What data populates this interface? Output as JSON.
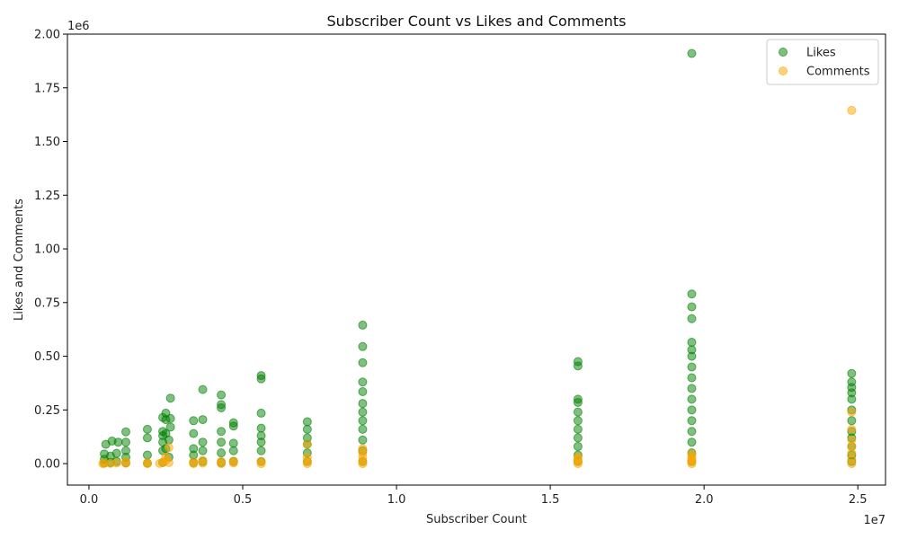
{
  "chart_data": {
    "type": "scatter",
    "title": "Subscriber Count vs Likes and Comments",
    "xlabel": "Subscriber Count",
    "ylabel": "Likes and Comments",
    "x_multiplier": "1e7",
    "y_multiplier": "1e6",
    "xlim": [
      -700000,
      25900000
    ],
    "ylim": [
      -100000,
      2000000
    ],
    "x_ticks": [
      0,
      5000000,
      10000000,
      15000000,
      20000000,
      25000000
    ],
    "x_tick_labels": [
      "0.0",
      "0.5",
      "1.0",
      "1.5",
      "2.0",
      "2.5"
    ],
    "y_ticks": [
      0,
      250000,
      500000,
      750000,
      1000000,
      1250000,
      1500000,
      1750000,
      2000000
    ],
    "y_tick_labels": [
      "0.00",
      "0.25",
      "0.50",
      "0.75",
      "1.00",
      "1.25",
      "1.50",
      "1.75",
      "2.00"
    ],
    "grid": false,
    "legend_position": "top-right",
    "series": [
      {
        "name": "Likes",
        "color": "#008000",
        "points": [
          [
            500000,
            2000
          ],
          [
            500000,
            20000
          ],
          [
            500000,
            45000
          ],
          [
            550000,
            90000
          ],
          [
            700000,
            5000
          ],
          [
            700000,
            35000
          ],
          [
            750000,
            105000
          ],
          [
            900000,
            10000
          ],
          [
            900000,
            48000
          ],
          [
            950000,
            100000
          ],
          [
            1200000,
            3000
          ],
          [
            1200000,
            30000
          ],
          [
            1200000,
            60000
          ],
          [
            1200000,
            100000
          ],
          [
            1200000,
            148000
          ],
          [
            1900000,
            2000
          ],
          [
            1900000,
            40000
          ],
          [
            1900000,
            120000
          ],
          [
            1900000,
            160000
          ],
          [
            2400000,
            5000
          ],
          [
            2400000,
            60000
          ],
          [
            2400000,
            100000
          ],
          [
            2400000,
            130000
          ],
          [
            2400000,
            150000
          ],
          [
            2400000,
            215000
          ],
          [
            2500000,
            70000
          ],
          [
            2500000,
            140000
          ],
          [
            2500000,
            205000
          ],
          [
            2500000,
            235000
          ],
          [
            2600000,
            30000
          ],
          [
            2600000,
            110000
          ],
          [
            2650000,
            170000
          ],
          [
            2650000,
            210000
          ],
          [
            2650000,
            305000
          ],
          [
            3400000,
            5000
          ],
          [
            3400000,
            40000
          ],
          [
            3400000,
            70000
          ],
          [
            3400000,
            140000
          ],
          [
            3400000,
            200000
          ],
          [
            3700000,
            10000
          ],
          [
            3700000,
            60000
          ],
          [
            3700000,
            100000
          ],
          [
            3700000,
            205000
          ],
          [
            3700000,
            345000
          ],
          [
            4300000,
            5000
          ],
          [
            4300000,
            50000
          ],
          [
            4300000,
            100000
          ],
          [
            4300000,
            150000
          ],
          [
            4300000,
            260000
          ],
          [
            4300000,
            275000
          ],
          [
            4300000,
            320000
          ],
          [
            4700000,
            10000
          ],
          [
            4700000,
            60000
          ],
          [
            4700000,
            95000
          ],
          [
            4700000,
            175000
          ],
          [
            4700000,
            190000
          ],
          [
            5600000,
            10000
          ],
          [
            5600000,
            60000
          ],
          [
            5600000,
            100000
          ],
          [
            5600000,
            130000
          ],
          [
            5600000,
            165000
          ],
          [
            5600000,
            235000
          ],
          [
            5600000,
            395000
          ],
          [
            5600000,
            410000
          ],
          [
            7100000,
            10000
          ],
          [
            7100000,
            50000
          ],
          [
            7100000,
            90000
          ],
          [
            7100000,
            120000
          ],
          [
            7100000,
            160000
          ],
          [
            7100000,
            195000
          ],
          [
            8900000,
            10000
          ],
          [
            8900000,
            60000
          ],
          [
            8900000,
            110000
          ],
          [
            8900000,
            160000
          ],
          [
            8900000,
            200000
          ],
          [
            8900000,
            240000
          ],
          [
            8900000,
            280000
          ],
          [
            8900000,
            335000
          ],
          [
            8900000,
            380000
          ],
          [
            8900000,
            470000
          ],
          [
            8900000,
            545000
          ],
          [
            8900000,
            645000
          ],
          [
            15900000,
            10000
          ],
          [
            15900000,
            40000
          ],
          [
            15900000,
            80000
          ],
          [
            15900000,
            120000
          ],
          [
            15900000,
            160000
          ],
          [
            15900000,
            200000
          ],
          [
            15900000,
            240000
          ],
          [
            15900000,
            285000
          ],
          [
            15900000,
            300000
          ],
          [
            15900000,
            455000
          ],
          [
            15900000,
            475000
          ],
          [
            19600000,
            10000
          ],
          [
            19600000,
            50000
          ],
          [
            19600000,
            100000
          ],
          [
            19600000,
            150000
          ],
          [
            19600000,
            200000
          ],
          [
            19600000,
            250000
          ],
          [
            19600000,
            300000
          ],
          [
            19600000,
            350000
          ],
          [
            19600000,
            400000
          ],
          [
            19600000,
            450000
          ],
          [
            19600000,
            500000
          ],
          [
            19600000,
            530000
          ],
          [
            19600000,
            565000
          ],
          [
            19600000,
            675000
          ],
          [
            19600000,
            730000
          ],
          [
            19600000,
            790000
          ],
          [
            19600000,
            1910000
          ],
          [
            24800000,
            10000
          ],
          [
            24800000,
            40000
          ],
          [
            24800000,
            80000
          ],
          [
            24800000,
            120000
          ],
          [
            24800000,
            150000
          ],
          [
            24800000,
            200000
          ],
          [
            24800000,
            250000
          ],
          [
            24800000,
            300000
          ],
          [
            24800000,
            330000
          ],
          [
            24800000,
            355000
          ],
          [
            24800000,
            380000
          ],
          [
            24800000,
            420000
          ]
        ]
      },
      {
        "name": "Comments",
        "color": "#FFA500",
        "points": [
          [
            450000,
            0
          ],
          [
            500000,
            2000
          ],
          [
            700000,
            1000
          ],
          [
            900000,
            3000
          ],
          [
            1200000,
            2000
          ],
          [
            1200000,
            8000
          ],
          [
            1900000,
            0
          ],
          [
            1900000,
            4000
          ],
          [
            2300000,
            1000
          ],
          [
            2400000,
            5000
          ],
          [
            2500000,
            15000
          ],
          [
            2500000,
            30000
          ],
          [
            2600000,
            5000
          ],
          [
            2600000,
            75000
          ],
          [
            3400000,
            0
          ],
          [
            3400000,
            8000
          ],
          [
            3700000,
            2000
          ],
          [
            3700000,
            15000
          ],
          [
            4300000,
            0
          ],
          [
            4300000,
            10000
          ],
          [
            4700000,
            3000
          ],
          [
            4700000,
            12000
          ],
          [
            5600000,
            0
          ],
          [
            5600000,
            10000
          ],
          [
            7100000,
            0
          ],
          [
            7100000,
            10000
          ],
          [
            7100000,
            30000
          ],
          [
            7100000,
            90000
          ],
          [
            8900000,
            0
          ],
          [
            8900000,
            10000
          ],
          [
            8900000,
            30000
          ],
          [
            8900000,
            50000
          ],
          [
            8900000,
            70000
          ],
          [
            15900000,
            0
          ],
          [
            15900000,
            10000
          ],
          [
            15900000,
            20000
          ],
          [
            15900000,
            30000
          ],
          [
            19600000,
            0
          ],
          [
            19600000,
            10000
          ],
          [
            19600000,
            20000
          ],
          [
            19600000,
            30000
          ],
          [
            19600000,
            45000
          ],
          [
            24800000,
            0
          ],
          [
            24800000,
            20000
          ],
          [
            24800000,
            50000
          ],
          [
            24800000,
            80000
          ],
          [
            24800000,
            110000
          ],
          [
            24800000,
            160000
          ],
          [
            24800000,
            240000
          ],
          [
            24800000,
            1645000
          ]
        ]
      }
    ]
  }
}
